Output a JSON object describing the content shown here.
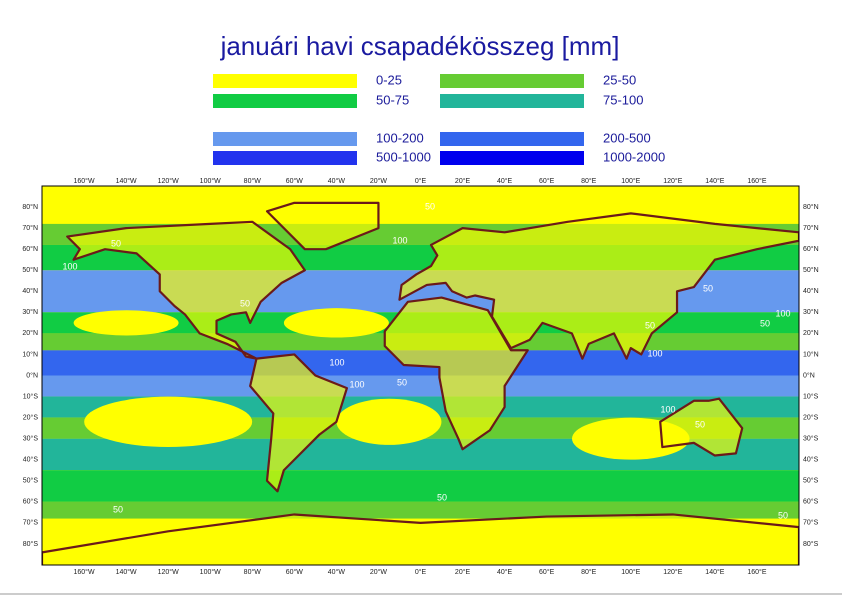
{
  "title": "januári havi csapadékösszeg [mm]",
  "legend": [
    {
      "label": "0-25",
      "color": "#ffff00"
    },
    {
      "label": "25-50",
      "color": "#66cc33"
    },
    {
      "label": "50-75",
      "color": "#11cc44"
    },
    {
      "label": "75-100",
      "color": "#22b59a"
    },
    {
      "label": "100-200",
      "color": "#6699ee"
    },
    {
      "label": "200-500",
      "color": "#3366ee"
    },
    {
      "label": "500-1000",
      "color": "#2233ee"
    },
    {
      "label": "1000-2000",
      "color": "#0000ee"
    }
  ],
  "lon_labels": [
    "160°W",
    "140°W",
    "120°W",
    "100°W",
    "80°W",
    "60°W",
    "40°W",
    "20°W",
    "0°E",
    "20°E",
    "40°E",
    "60°E",
    "80°E",
    "100°E",
    "120°E",
    "140°E",
    "160°E"
  ],
  "lat_labels": [
    "80°N",
    "70°N",
    "60°N",
    "50°N",
    "40°N",
    "30°N",
    "20°N",
    "10°N",
    "0°N",
    "10°S",
    "20°S",
    "30°S",
    "40°S",
    "50°S",
    "60°S",
    "70°S",
    "80°S"
  ],
  "contour_labels": [
    50,
    50,
    100,
    100,
    50,
    100,
    100,
    50,
    100,
    50,
    50,
    100,
    50,
    100,
    50,
    50,
    50,
    50
  ]
}
